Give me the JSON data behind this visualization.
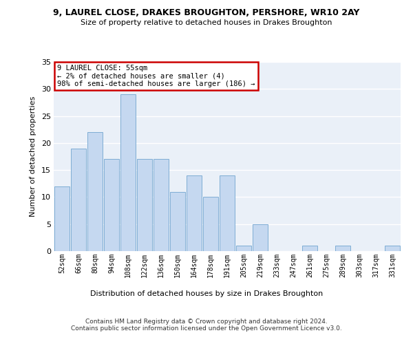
{
  "title1": "9, LAUREL CLOSE, DRAKES BROUGHTON, PERSHORE, WR10 2AY",
  "title2": "Size of property relative to detached houses in Drakes Broughton",
  "xlabel": "Distribution of detached houses by size in Drakes Broughton",
  "ylabel": "Number of detached properties",
  "footer": "Contains HM Land Registry data © Crown copyright and database right 2024.\nContains public sector information licensed under the Open Government Licence v3.0.",
  "bins": [
    "52sqm",
    "66sqm",
    "80sqm",
    "94sqm",
    "108sqm",
    "122sqm",
    "136sqm",
    "150sqm",
    "164sqm",
    "178sqm",
    "191sqm",
    "205sqm",
    "219sqm",
    "233sqm",
    "247sqm",
    "261sqm",
    "275sqm",
    "289sqm",
    "303sqm",
    "317sqm",
    "331sqm"
  ],
  "values": [
    12,
    19,
    22,
    17,
    29,
    17,
    17,
    11,
    14,
    10,
    14,
    1,
    5,
    0,
    0,
    1,
    0,
    1,
    0,
    0,
    1
  ],
  "bar_color": "#c5d8f0",
  "bar_edge_color": "#7eadd4",
  "annotation_title": "9 LAUREL CLOSE: 55sqm",
  "annotation_line2": "← 2% of detached houses are smaller (4)",
  "annotation_line3": "98% of semi-detached houses are larger (186) →",
  "annotation_box_color": "#ffffff",
  "annotation_border_color": "#cc0000",
  "bg_color": "#eaf0f8",
  "grid_color": "#ffffff",
  "ylim": [
    0,
    35
  ],
  "yticks": [
    0,
    5,
    10,
    15,
    20,
    25,
    30,
    35
  ]
}
